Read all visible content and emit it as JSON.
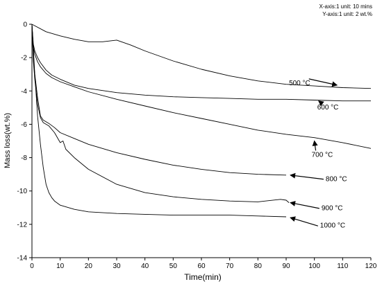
{
  "chart_data": {
    "type": "line",
    "xlabel": "Time(min)",
    "ylabel": "Mass loss(wt.%)",
    "xlim": [
      0,
      120
    ],
    "ylim": [
      -14,
      0
    ],
    "xticks": [
      0,
      10,
      20,
      30,
      40,
      50,
      60,
      70,
      80,
      90,
      100,
      110,
      120
    ],
    "yticks": [
      0,
      -2,
      -4,
      -6,
      -8,
      -10,
      -12,
      -14
    ],
    "grid": false,
    "notes": [
      "X-axis:1 unit: 10 mins",
      "Y-axis:1 unit: 2 wt.%"
    ],
    "series": [
      {
        "name": "500 °C",
        "x": [
          0,
          5,
          10,
          15,
          20,
          25,
          30,
          35,
          40,
          50,
          60,
          70,
          80,
          90,
          100,
          110,
          120
        ],
        "y": [
          0,
          -0.45,
          -0.7,
          -0.9,
          -1.05,
          -1.05,
          -0.95,
          -1.25,
          -1.6,
          -2.2,
          -2.7,
          -3.1,
          -3.4,
          -3.6,
          -3.7,
          -3.8,
          -3.85
        ],
        "label_x": 91,
        "label_y": -3.65,
        "arrow_x": 108,
        "arrow_y": -3.65
      },
      {
        "name": "600 °C",
        "x": [
          0,
          0.5,
          1,
          2,
          3,
          5,
          7,
          10,
          15,
          20,
          30,
          40,
          50,
          60,
          70,
          80,
          90,
          100,
          110,
          120
        ],
        "y": [
          0,
          -1.2,
          -1.6,
          -2.0,
          -2.3,
          -2.75,
          -3.05,
          -3.3,
          -3.65,
          -3.85,
          -4.1,
          -4.25,
          -4.35,
          -4.4,
          -4.45,
          -4.5,
          -4.5,
          -4.55,
          -4.6,
          -4.6
        ],
        "label_x": 101,
        "label_y": -5.1,
        "arrow_x": 101.5,
        "arrow_y": -4.6
      },
      {
        "name": "700 °C",
        "x": [
          0,
          0.5,
          1,
          2,
          3,
          5,
          7,
          10,
          15,
          20,
          30,
          40,
          50,
          60,
          70,
          80,
          90,
          100,
          110,
          120
        ],
        "y": [
          0,
          -1.4,
          -1.8,
          -2.25,
          -2.55,
          -2.95,
          -3.2,
          -3.45,
          -3.75,
          -4.05,
          -4.5,
          -4.9,
          -5.3,
          -5.65,
          -6.0,
          -6.35,
          -6.6,
          -6.8,
          -7.1,
          -7.45
        ],
        "label_x": 99,
        "label_y": -7.95,
        "arrow_x": 100,
        "arrow_y": -7.0
      },
      {
        "name": "800 °C",
        "x": [
          0,
          0.5,
          1,
          2,
          3,
          4,
          6,
          8,
          10,
          15,
          20,
          30,
          40,
          50,
          60,
          70,
          80,
          90
        ],
        "y": [
          0,
          -2.0,
          -3.0,
          -4.4,
          -5.5,
          -5.75,
          -5.95,
          -6.2,
          -6.5,
          -6.85,
          -7.2,
          -7.7,
          -8.1,
          -8.45,
          -8.7,
          -8.9,
          -9.0,
          -9.05
        ],
        "label_x": 104,
        "label_y": -9.4,
        "arrow_x": 91.5,
        "arrow_y": -9.05
      },
      {
        "name": "900 °C",
        "x": [
          0,
          0.5,
          1,
          2,
          3,
          4,
          6,
          8,
          10,
          11,
          12,
          15,
          20,
          30,
          40,
          50,
          60,
          70,
          80,
          88,
          90,
          91
        ],
        "y": [
          0,
          -2.2,
          -3.3,
          -4.8,
          -5.6,
          -5.9,
          -6.1,
          -6.5,
          -7.1,
          -7.0,
          -7.5,
          -8.0,
          -8.7,
          -9.6,
          -10.1,
          -10.35,
          -10.5,
          -10.6,
          -10.65,
          -10.5,
          -10.55,
          -10.7
        ],
        "label_x": 102.5,
        "label_y": -11.15,
        "arrow_x": 91.5,
        "arrow_y": -10.7
      },
      {
        "name": "1000 °C",
        "x": [
          0,
          1,
          2,
          3,
          4,
          5,
          6,
          7,
          8,
          10,
          15,
          20,
          30,
          40,
          50,
          60,
          70,
          80,
          90
        ],
        "y": [
          0,
          -3.0,
          -5.5,
          -7.2,
          -8.6,
          -9.6,
          -10.1,
          -10.4,
          -10.6,
          -10.85,
          -11.1,
          -11.25,
          -11.35,
          -11.4,
          -11.45,
          -11.45,
          -11.45,
          -11.5,
          -11.55
        ],
        "label_x": 102,
        "label_y": -12.2,
        "arrow_x": 91.5,
        "arrow_y": -11.6
      }
    ]
  }
}
